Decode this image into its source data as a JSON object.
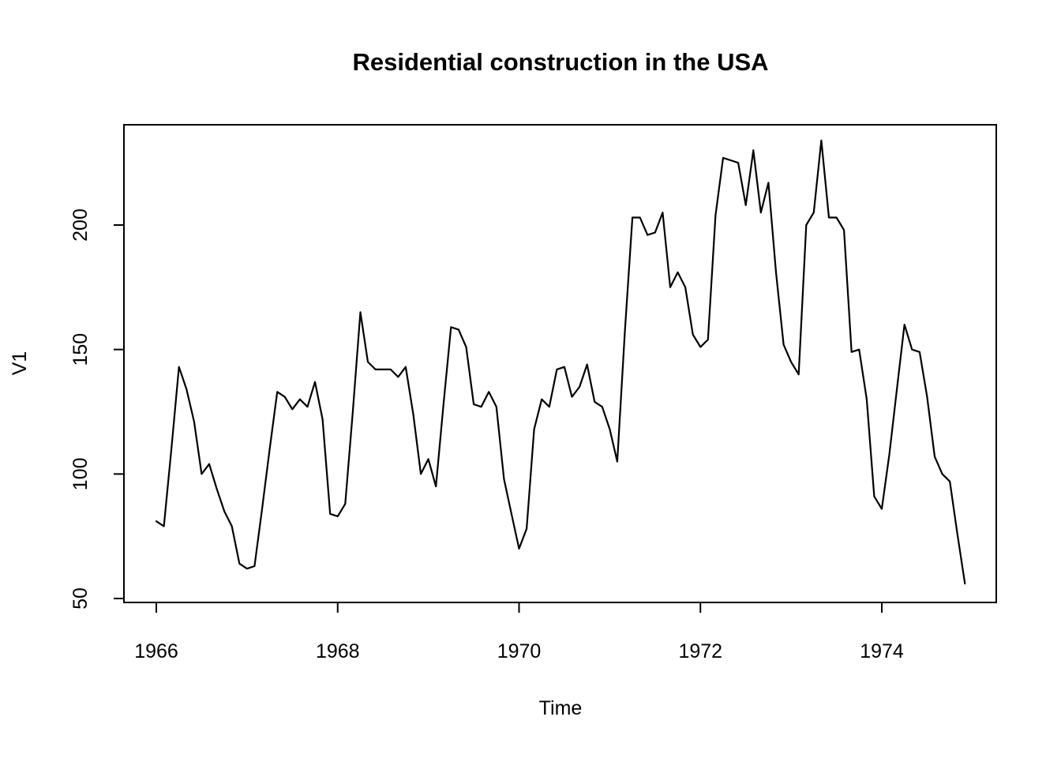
{
  "figure": {
    "title": "Residential construction in the USA",
    "xlabel": "Time",
    "ylabel": "V1"
  },
  "chart_data": {
    "type": "line",
    "title": "Residential construction in the USA",
    "xlabel": "Time",
    "ylabel": "V1",
    "series_name": "V1",
    "start_year": 1966,
    "frequency": 12,
    "x_ticks": [
      "1966",
      "1968",
      "1970",
      "1972",
      "1974"
    ],
    "x_tick_values": [
      1966,
      1968,
      1970,
      1972,
      1974
    ],
    "y_ticks": [
      "50",
      "100",
      "150",
      "200"
    ],
    "y_tick_values": [
      50,
      100,
      150,
      200
    ],
    "xlim": [
      1965.64,
      1975.28
    ],
    "ylim": [
      48.2,
      240.5
    ],
    "grid": false,
    "legend": "none",
    "line_color": "#000000",
    "background_color": "#ffffff",
    "values": [
      81,
      79,
      110,
      143,
      134,
      121,
      100,
      104,
      94,
      85,
      79,
      64,
      62,
      63,
      86,
      110,
      133,
      131,
      126,
      130,
      127,
      137,
      122,
      84,
      83,
      88,
      125,
      165,
      145,
      142,
      142,
      142,
      139,
      143,
      124,
      100,
      106,
      95,
      128,
      159,
      158,
      151,
      128,
      127,
      133,
      127,
      98,
      84,
      70,
      78,
      118,
      130,
      127,
      142,
      143,
      131,
      135,
      144,
      129,
      127,
      118,
      105,
      157,
      203,
      203,
      196,
      197,
      205,
      175,
      181,
      175,
      156,
      151,
      154,
      204,
      227,
      226,
      225,
      208,
      230,
      205,
      217,
      181,
      152,
      145,
      140,
      200,
      205,
      234,
      203,
      203,
      198,
      149,
      150,
      130,
      91,
      86,
      108,
      134,
      160,
      150,
      149,
      131,
      107,
      100,
      97,
      76,
      56
    ]
  }
}
